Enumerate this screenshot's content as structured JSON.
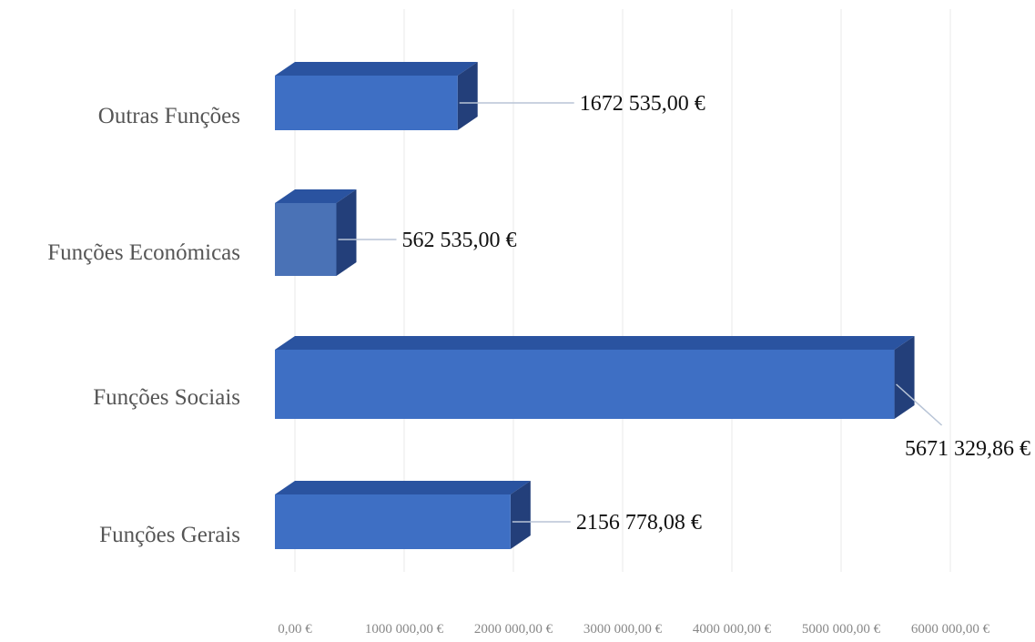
{
  "chart_data": {
    "type": "bar",
    "orientation": "horizontal",
    "style": "3d",
    "categories": [
      "Outras Funções",
      "Funções Económicas",
      "Funções Sociais",
      "Funções Gerais"
    ],
    "values": [
      1672535.0,
      562535.0,
      5671329.86,
      2156778.08
    ],
    "data_labels": [
      "1672 535,00 €",
      "562 535,00 €",
      "5671 329,86 €",
      "2156 778,08 €"
    ],
    "x_ticks": [
      "0,00 €",
      "1000 000,00 €",
      "2000 000,00 €",
      "3000 000,00 €",
      "4000 000,00 €",
      "5000 000,00 €",
      "6000 000,00 €"
    ],
    "tick_values": [
      0,
      1000000,
      2000000,
      3000000,
      4000000,
      5000000,
      6000000
    ],
    "xlim": [
      0,
      6000000
    ],
    "grid": true,
    "legend": "none",
    "title": "",
    "xlabel": "",
    "ylabel": "",
    "colors": {
      "bar_front": "#3e6fc4",
      "bar_top": "#2a53a0",
      "bar_side": "#233f7a",
      "bar_front_alt": "#4a72b6",
      "leader_line": "#b8c4d6",
      "gridline": "#e8e8e8"
    }
  }
}
